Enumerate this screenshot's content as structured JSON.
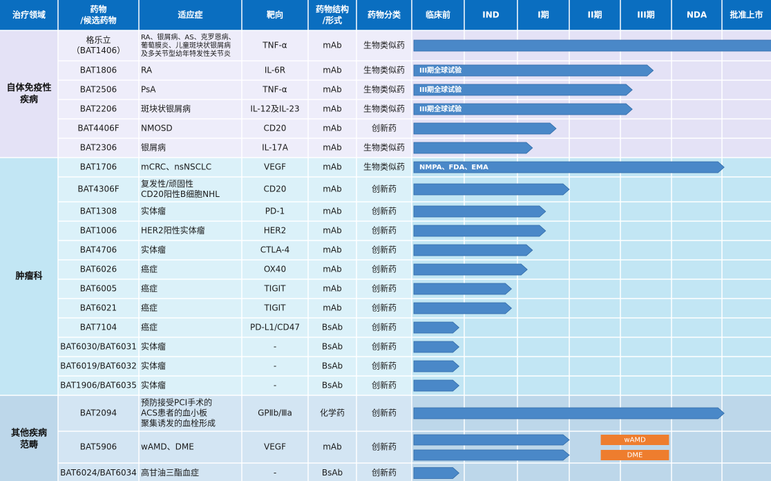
{
  "headers": {
    "area": "治疗领域",
    "drug_line1": "药物",
    "drug_line2": "/候选药物",
    "indication": "适应症",
    "target": "靶向",
    "structure_line1": "药物结构",
    "structure_line2": "/形式",
    "category": "药物分类"
  },
  "colors": {
    "header": "#0a6ec0",
    "bar": "#4a88c8",
    "bar_stroke": "#2f6aa6",
    "orange": "#ee7d2e",
    "grid": "#ffffff",
    "autoimmune_stage": "#e4e2f6",
    "autoimmune_col": "#eeedfa",
    "oncology_stage": "#c2e6f4",
    "oncology_col": "#dbf1f9",
    "other_stage": "#bdd7ea",
    "other_col": "#d3e5f3"
  },
  "chart_data": {
    "type": "table",
    "stages": [
      "临床前",
      "IND",
      "I期",
      "II期",
      "III期",
      "NDA",
      "批准上市"
    ],
    "groups": [
      {
        "name": "自体免疫性\n疾病",
        "rows": [
          0,
          5
        ],
        "theme": "autoimmune"
      },
      {
        "name": "肿瘤科",
        "rows": [
          6,
          17
        ],
        "theme": "oncology"
      },
      {
        "name": "其他疾病\n范畴",
        "rows": [
          18,
          20
        ],
        "theme": "other"
      }
    ],
    "rows": [
      {
        "drug": "格乐立\n（BAT1406）",
        "indication": "RA、银屑病、AS、克罗恩病、\n葡萄膜炎、儿童斑块状银屑病\n及多关节型幼年特发性关节炎",
        "indication_small": true,
        "target": "TNF-α",
        "structure": "mAb",
        "category": "生物类似药",
        "progress": 7.0,
        "bar_label": ""
      },
      {
        "drug": "BAT1806",
        "indication": "RA",
        "target": "IL-6R",
        "structure": "mAb",
        "category": "生物类似药",
        "progress": 4.6,
        "bar_label": "III期全球试验"
      },
      {
        "drug": "BAT2506",
        "indication": "PsA",
        "target": "TNF-α",
        "structure": "mAb",
        "category": "生物类似药",
        "progress": 4.2,
        "bar_label": "III期全球试验"
      },
      {
        "drug": "BAT2206",
        "indication": "斑块状银屑病",
        "target": "IL-12及IL-23",
        "structure": "mAb",
        "category": "生物类似药",
        "progress": 4.2,
        "bar_label": "III期全球试验"
      },
      {
        "drug": "BAT4406F",
        "indication": "NMOSD",
        "target": "CD20",
        "structure": "mAb",
        "category": "创新药",
        "progress": 2.75,
        "bar_label": ""
      },
      {
        "drug": "BAT2306",
        "indication": "银屑病",
        "target": "IL-17A",
        "structure": "mAb",
        "category": "生物类似药",
        "progress": 2.3,
        "bar_label": ""
      },
      {
        "drug": "BAT1706",
        "indication": "mCRC、nsNSCLC",
        "target": "VEGF",
        "structure": "mAb",
        "category": "生物类似药",
        "progress": 5.95,
        "bar_label": "NMPA、FDA、EMA"
      },
      {
        "drug": "BAT4306F",
        "indication": "复发性/顽固性\nCD20阳性B细胞NHL",
        "target": "CD20",
        "structure": "mAb",
        "category": "创新药",
        "progress": 3.0,
        "bar_label": ""
      },
      {
        "drug": "BAT1308",
        "indication": "实体瘤",
        "target": "PD-1",
        "structure": "mAb",
        "category": "创新药",
        "progress": 2.55,
        "bar_label": ""
      },
      {
        "drug": "BAT1006",
        "indication": "HER2阳性实体瘤",
        "target": "HER2",
        "structure": "mAb",
        "category": "创新药",
        "progress": 2.55,
        "bar_label": ""
      },
      {
        "drug": "BAT4706",
        "indication": "实体瘤",
        "target": "CTLA-4",
        "structure": "mAb",
        "category": "创新药",
        "progress": 2.3,
        "bar_label": ""
      },
      {
        "drug": "BAT6026",
        "indication": "癌症",
        "target": "OX40",
        "structure": "mAb",
        "category": "创新药",
        "progress": 2.2,
        "bar_label": ""
      },
      {
        "drug": "BAT6005",
        "indication": "癌症",
        "target": "TIGIT",
        "structure": "mAb",
        "category": "创新药",
        "progress": 1.9,
        "bar_label": ""
      },
      {
        "drug": "BAT6021",
        "indication": "癌症",
        "target": "TIGIT",
        "structure": "mAb",
        "category": "创新药",
        "progress": 1.9,
        "bar_label": ""
      },
      {
        "drug": "BAT7104",
        "indication": "癌症",
        "target": "PD-L1/CD47",
        "structure": "BsAb",
        "category": "创新药",
        "progress": 0.9,
        "bar_label": ""
      },
      {
        "drug": "BAT6030/BAT6031",
        "indication": "实体瘤",
        "target": "-",
        "structure": "BsAb",
        "category": "创新药",
        "progress": 0.9,
        "bar_label": ""
      },
      {
        "drug": "BAT6019/BAT6032",
        "indication": "实体瘤",
        "target": "-",
        "structure": "BsAb",
        "category": "创新药",
        "progress": 0.9,
        "bar_label": ""
      },
      {
        "drug": "BAT1906/BAT6035",
        "indication": "实体瘤",
        "target": "-",
        "structure": "BsAb",
        "category": "创新药",
        "progress": 0.9,
        "bar_label": ""
      },
      {
        "drug": "BAT2094",
        "indication": "预防接受PCI手术的\nACS患者的血小板\n聚集诱发的血栓形成",
        "target": "GPⅡb/Ⅲa",
        "structure": "化学药",
        "category": "创新药",
        "progress": 5.95,
        "bar_label": ""
      },
      {
        "drug": "BAT5906",
        "indication": "wAMD、DME",
        "target": "VEGF",
        "structure": "mAb",
        "category": "创新药",
        "progress": 3.0,
        "bar_label": "",
        "sub_labels": [
          "wAMD",
          "DME"
        ],
        "label_span": [
          3.6,
          4.9
        ]
      },
      {
        "drug": "BAT6024/BAT6034",
        "indication": "高甘油三酯血症",
        "target": "-",
        "structure": "BsAb",
        "category": "创新药",
        "progress": 0.9,
        "bar_label": ""
      }
    ]
  }
}
